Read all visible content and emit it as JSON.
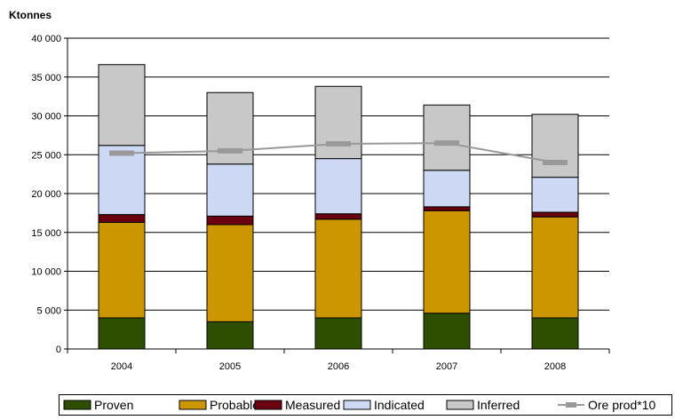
{
  "chart_data": {
    "type": "bar",
    "stacked": true,
    "unit_label": "Ktonnes",
    "categories": [
      "2004",
      "2005",
      "2006",
      "2007",
      "2008"
    ],
    "y_ticks": [
      "0",
      "5 000",
      "10 000",
      "15 000",
      "20 000",
      "25 000",
      "30 000",
      "35 000",
      "40 000"
    ],
    "ylim": [
      0,
      40000
    ],
    "grid": true,
    "legend_position": "bottom",
    "series": [
      {
        "name": "Proven",
        "color": "#2f4f00",
        "values": [
          4000,
          3500,
          4000,
          4600,
          4000
        ]
      },
      {
        "name": "Probable",
        "color": "#cc9600",
        "values": [
          12300,
          12500,
          12700,
          13200,
          13000
        ]
      },
      {
        "name": "Measured",
        "color": "#6b0010",
        "values": [
          1000,
          1100,
          700,
          500,
          600
        ]
      },
      {
        "name": "Indicated",
        "color": "#ccd8f4",
        "values": [
          8900,
          6700,
          7100,
          4700,
          4500
        ]
      },
      {
        "name": "Inferred",
        "color": "#c8c8c8",
        "values": [
          10400,
          9200,
          9300,
          8400,
          8100
        ]
      }
    ],
    "line_series": {
      "name": "Ore prod*10",
      "color": "#999999",
      "values": [
        25200,
        25500,
        26400,
        26500,
        24000
      ]
    }
  }
}
